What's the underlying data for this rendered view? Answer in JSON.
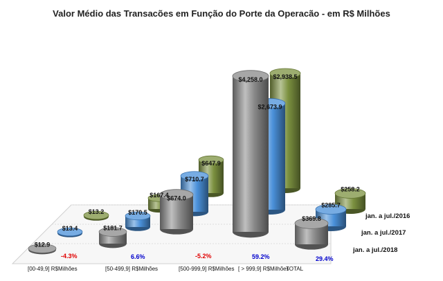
{
  "chart_data": {
    "type": "bar",
    "title": "Valor Médio das Transacões em Função do Porte da Operacão - em R$ Milhões",
    "categories": [
      "[00-49,9] R$Milhões",
      "[50-499,9] R$Milhões",
      "[500-999,9] R$Milhões",
      "[ > 999,9] R$Milhões",
      "TOTAL"
    ],
    "series": [
      {
        "name": "jan. a jul./2016",
        "values": [
          13.2,
          167.4,
          647.9,
          2938.5,
          258.2
        ],
        "labels": [
          "$13.2",
          "$167.4",
          "$647.9",
          "$2,938.5",
          "$258.2"
        ],
        "color": "#7c9140"
      },
      {
        "name": "jan. a jul./2017",
        "values": [
          13.4,
          170.5,
          710.7,
          2673.9,
          285.7
        ],
        "labels": [
          "$13.4",
          "$170.5",
          "$710.7",
          "$2,673.9",
          "$285.7"
        ],
        "color": "#4a90d9"
      },
      {
        "name": "jan. a jul./2018",
        "values": [
          12.9,
          181.7,
          674.0,
          4258.0,
          369.8
        ],
        "labels": [
          "$12.9",
          "$181.7",
          "$674.0",
          "$4,258.0",
          "$369.8"
        ],
        "color": "#8a8a8a"
      }
    ],
    "variations": [
      {
        "text": "-4.3%",
        "color": "#e00000"
      },
      {
        "text": "6.6%",
        "color": "#0000cc"
      },
      {
        "text": "-5.2%",
        "color": "#e00000"
      },
      {
        "text": "59.2%",
        "color": "#0000cc"
      },
      {
        "text": "29.4%",
        "color": "#0000cc"
      }
    ],
    "legend_position": "right (series labels on depth axis)"
  }
}
